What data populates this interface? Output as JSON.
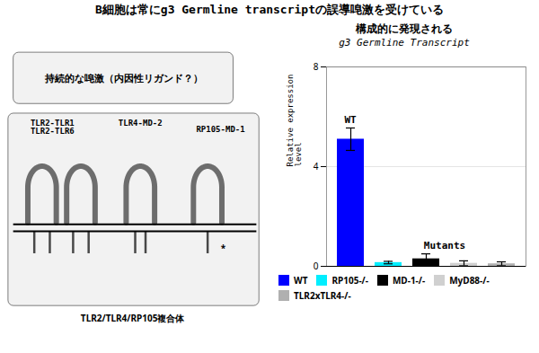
{
  "chart_data": [
    {
      "type": "diagram",
      "title": "B細胞は常にg3 Germline transcriptの誤導唣激を受けている",
      "annotations": [
        {
          "text": "持続的な唣激（内因性リガンド？）"
        },
        {
          "text": "TLR2-TLR1\nTLR2-TLR6"
        },
        {
          "text": "TLR4-MD-2"
        },
        {
          "text": "RP105-MD-1"
        },
        {
          "text": "*"
        },
        {
          "text": "TLR2/TLR4/RP105複合体"
        }
      ]
    },
    {
      "type": "bar",
      "title": "構成的に発現される",
      "subtitle": "g3 Germline Transcript",
      "ylabel": "Relative expression\nlevel",
      "categories": [
        "WT",
        "RP105-/-",
        "MD-1-/-",
        "MyD88-/-",
        "TLR2xTLR4-/-"
      ],
      "values": [
        5.1,
        0.15,
        0.3,
        0.12,
        0.1
      ],
      "errors": [
        0.45,
        0.05,
        0.2,
        0.1,
        0.08
      ],
      "colors": [
        "#0000ff",
        "#00eeff",
        "#000000",
        "#d0d0d0",
        "#b0b0b0"
      ],
      "ylim": [
        0,
        8
      ],
      "yticks": [
        0,
        4,
        8
      ],
      "grid": true,
      "legend": "bottom",
      "tick_labels": "y",
      "annotations": [
        {
          "text": "WT",
          "categories": [
            "WT"
          ]
        },
        {
          "text": "Mutants",
          "categories": [
            "RP105-/-",
            "MD-1-/-",
            "MyD88-/-",
            "TLR2xTLR4-/-"
          ]
        }
      ]
    }
  ]
}
